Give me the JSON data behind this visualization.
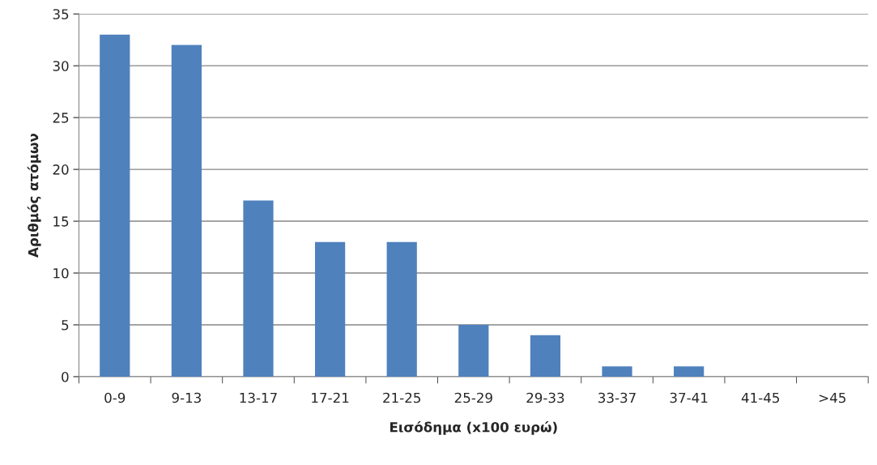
{
  "chart_data": {
    "type": "bar",
    "xlabel": "Εισόδημα (x100 ευρώ)",
    "ylabel": "Αριθμός ατόμων",
    "categories": [
      "0-9",
      "9-13",
      "13-17",
      "17-21",
      "21-25",
      "25-29",
      "29-33",
      "33-37",
      "37-41",
      "41-45",
      ">45"
    ],
    "values": [
      33,
      32,
      17,
      13,
      13,
      5,
      4,
      1,
      1,
      0,
      0
    ],
    "color": "#4f81bd",
    "ylim": [
      0,
      35
    ],
    "yticks": [
      0,
      5,
      10,
      15,
      20,
      25,
      30,
      35
    ],
    "grid": "y"
  }
}
